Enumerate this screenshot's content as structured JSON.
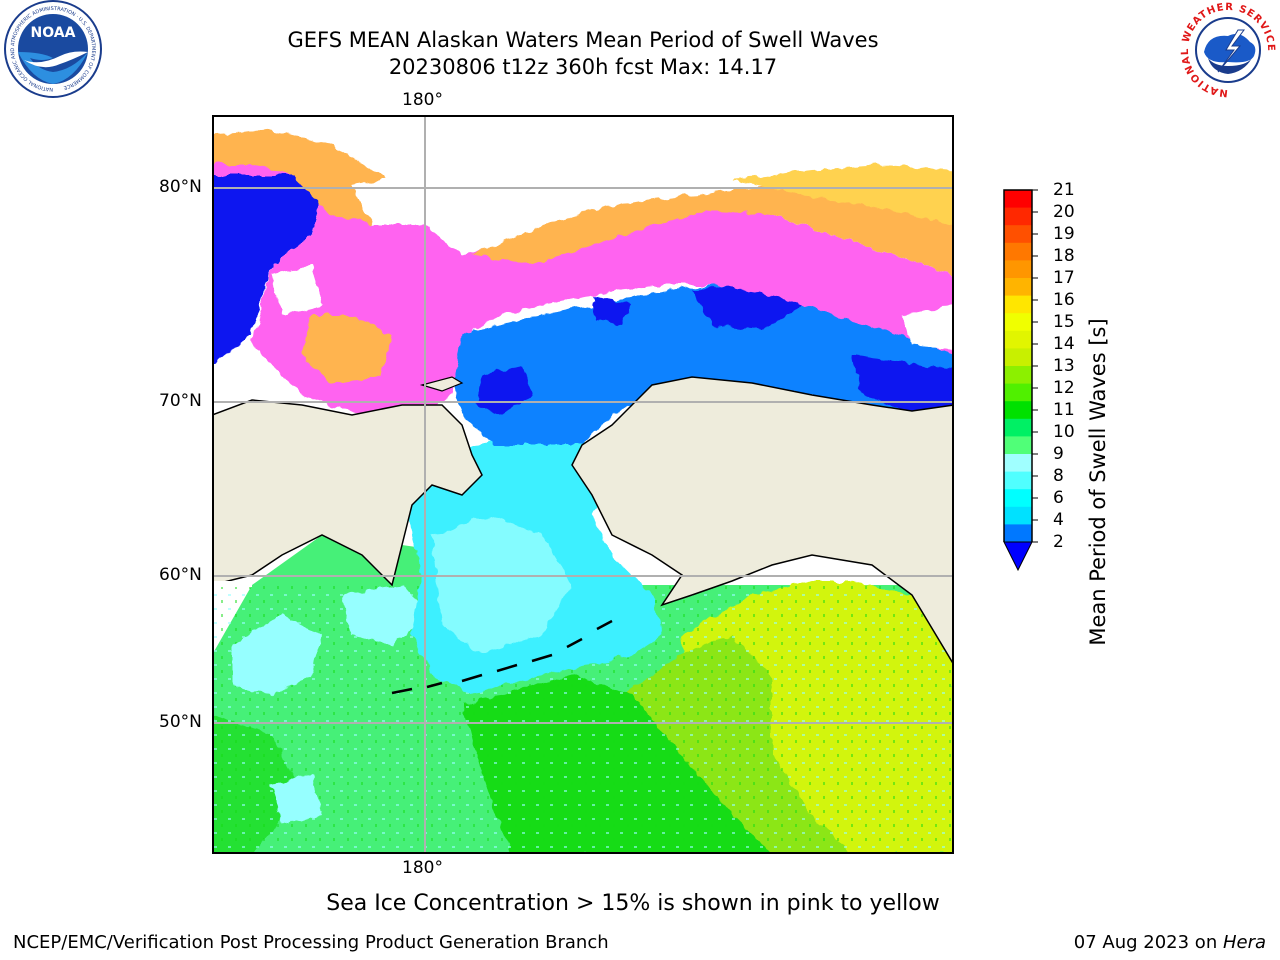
{
  "title": {
    "line1": "GEFS MEAN Alaskan Waters Mean Period of Swell Waves",
    "line2": "20230806 t12z 360h fcst   Max: 14.17"
  },
  "map": {
    "lon_label_top": "180°",
    "lon_label_bottom": "180°",
    "lat_labels": [
      "80°N",
      "70°N",
      "60°N",
      "50°N"
    ],
    "colors": {
      "land": "#eeecdc",
      "coast": "#000000",
      "grid": "#b0b0b0",
      "blue": "#0a14f0",
      "mid_blue": "#0a82ff",
      "cyan": "#3cf0ff",
      "light_cyan": "#96ffff",
      "green": "#46f078",
      "bright_green": "#14dc14",
      "lime": "#8ce614",
      "yellow_green": "#d2f50a",
      "ice_pink": "#ff64f0",
      "ice_orange": "#ffb450",
      "ice_yellow": "#ffd250"
    }
  },
  "colorbar": {
    "label": "Mean Period of Swell Waves [s]",
    "ticks": [
      "21",
      "20",
      "19",
      "18",
      "17",
      "16",
      "15",
      "14",
      "13",
      "12",
      "11",
      "10",
      "9",
      "8",
      "6",
      "4",
      "2"
    ],
    "colors_top_to_bottom": [
      "#ff0000",
      "#ff2800",
      "#ff5000",
      "#ff7800",
      "#ff9600",
      "#ffb400",
      "#ffe600",
      "#f0ff00",
      "#e1f500",
      "#c8f000",
      "#8cf000",
      "#50f000",
      "#00e100",
      "#00f064",
      "#50ff78",
      "#a0ffff",
      "#50ffff",
      "#00ffff",
      "#00e1ff",
      "#0078ff"
    ],
    "under_color": "#0000ff"
  },
  "note": "Sea Ice Concentration > 15% is shown in pink to yellow",
  "footer": {
    "left": "NCEP/EMC/Verification Post Processing Product Generation Branch",
    "right_date": "07 Aug 2023 on ",
    "right_machine": "Hera"
  },
  "logos": {
    "noaa_text": "NOAA",
    "noaa_ring_text": "NATIONAL OCEANIC AND ATMOSPHERIC ADMINISTRATION · U.S. DEPARTMENT OF COMMERCE",
    "nws_ring_text": "NATIONAL WEATHER SERVICE"
  }
}
